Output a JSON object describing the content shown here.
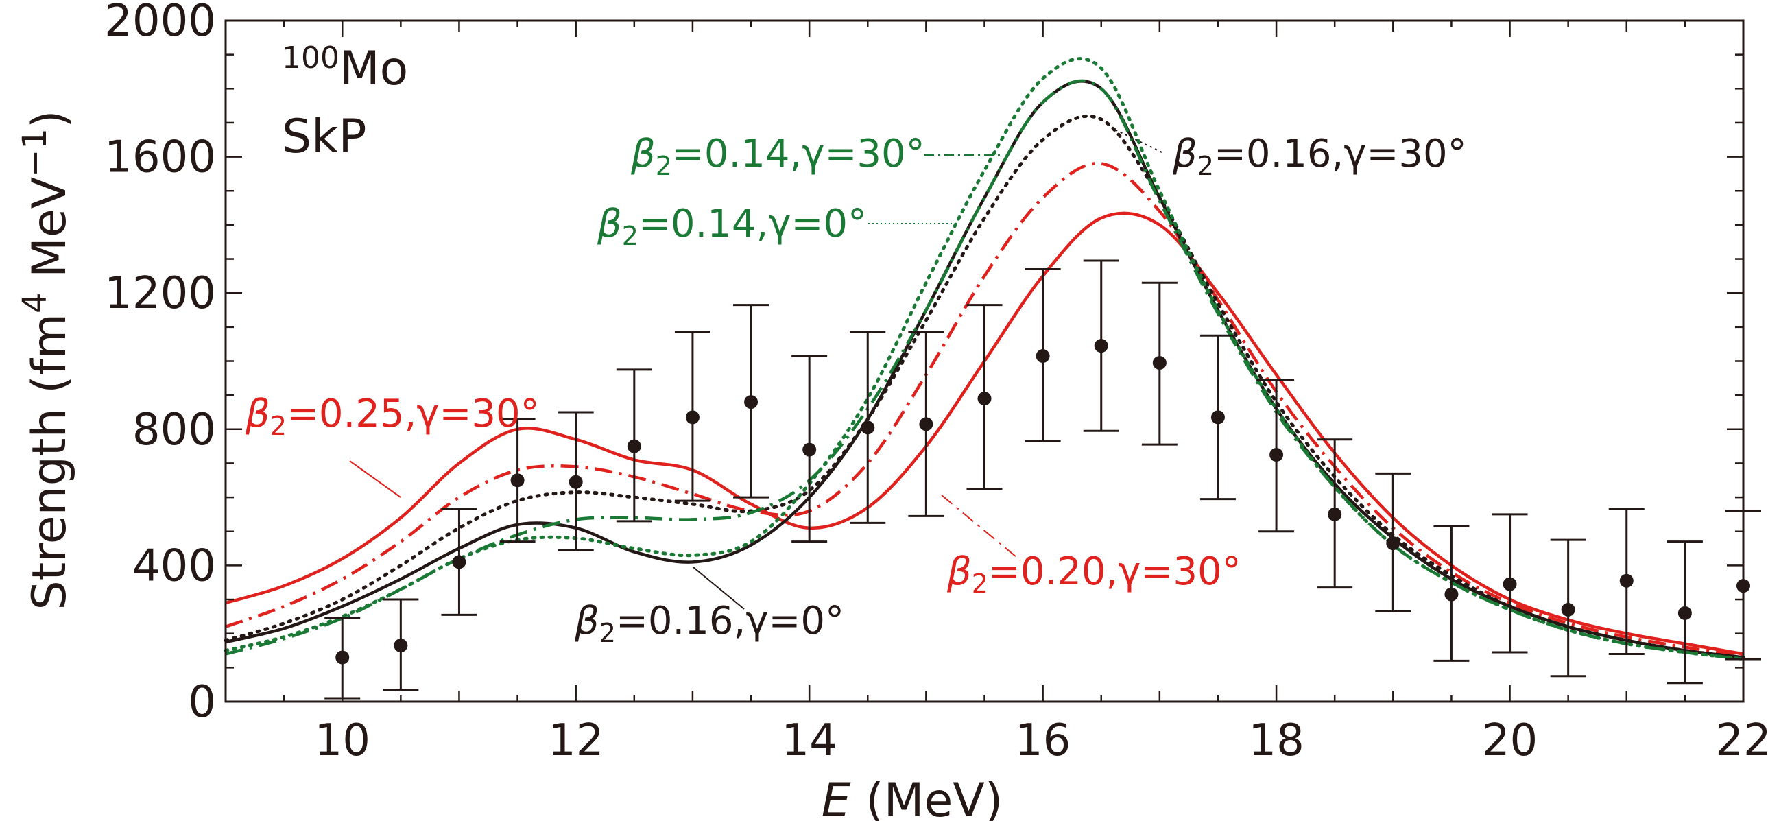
{
  "chart_data": {
    "type": "line",
    "xlabel_italic": "E",
    "xlabel_unit": "(MeV)",
    "ylabel": "Strength (fm",
    "ylabel_sup": "4",
    "ylabel_mid": " MeV",
    "ylabel_sup2": "−1",
    "ylabel_end": ")",
    "xlim": [
      9,
      22
    ],
    "ylim": [
      0,
      2000
    ],
    "xticks": [
      "10",
      "12",
      "14",
      "16",
      "18",
      "20",
      "22"
    ],
    "yticks": [
      "0",
      "400",
      "800",
      "1200",
      "1600",
      "2000"
    ],
    "annotations": {
      "nucleus_mass": "100",
      "nucleus_symbol": "Mo",
      "interaction": "SkP"
    },
    "x": [
      9,
      9.5,
      10,
      10.5,
      11,
      11.5,
      12,
      12.5,
      13,
      13.5,
      14,
      14.5,
      15,
      15.5,
      16,
      16.5,
      17,
      17.5,
      18,
      18.5,
      19,
      19.5,
      20,
      20.5,
      21,
      21.5,
      22
    ],
    "series": [
      {
        "label": {
          "beta": "β",
          "sub": "2",
          "rest": "=0.25,γ=30°"
        },
        "color": "#e0221e",
        "style": "solid",
        "values": [
          290,
          340,
          420,
          540,
          700,
          800,
          770,
          710,
          680,
          580,
          510,
          570,
          750,
          1000,
          1250,
          1420,
          1400,
          1200,
          960,
          730,
          540,
          400,
          300,
          240,
          200,
          170,
          140
        ]
      },
      {
        "label": {
          "beta": "β",
          "sub": "2",
          "rest": "=0.20,γ=30°"
        },
        "color": "#e0221e",
        "style": "dashdot",
        "values": [
          220,
          280,
          360,
          470,
          600,
          680,
          690,
          660,
          610,
          560,
          560,
          700,
          960,
          1250,
          1480,
          1580,
          1440,
          1180,
          910,
          690,
          510,
          380,
          290,
          230,
          190,
          160,
          135
        ]
      },
      {
        "label": {
          "beta": "β",
          "sub": "2",
          "rest": "=0.16,γ=30°"
        },
        "color": "#231815",
        "style": "dotted",
        "values": [
          180,
          230,
          300,
          400,
          510,
          590,
          615,
          600,
          580,
          560,
          620,
          830,
          1120,
          1420,
          1650,
          1710,
          1480,
          1170,
          880,
          660,
          490,
          370,
          280,
          220,
          180,
          150,
          130
        ]
      },
      {
        "label": {
          "beta": "β",
          "sub": "2",
          "rest": "=0.16,γ=0°"
        },
        "color": "#231815",
        "style": "solid",
        "values": [
          175,
          215,
          280,
          360,
          450,
          520,
          510,
          440,
          410,
          460,
          600,
          830,
          1150,
          1480,
          1760,
          1800,
          1480,
          1150,
          860,
          640,
          480,
          360,
          280,
          220,
          180,
          150,
          130
        ]
      },
      {
        "label": {
          "beta": "β",
          "sub": "2",
          "rest": "=0.14,γ=0°"
        },
        "color": "#1a7a35",
        "style": "dotted",
        "values": [
          150,
          190,
          250,
          330,
          420,
          475,
          480,
          450,
          430,
          470,
          640,
          890,
          1230,
          1560,
          1830,
          1860,
          1500,
          1150,
          860,
          630,
          460,
          350,
          270,
          210,
          170,
          145,
          125
        ]
      },
      {
        "label": {
          "beta": "β",
          "sub": "2",
          "rest": "=0.14,γ=30°"
        },
        "color": "#1a7a35",
        "style": "dashdot",
        "values": [
          140,
          185,
          245,
          330,
          420,
          490,
          535,
          540,
          535,
          555,
          650,
          860,
          1150,
          1480,
          1760,
          1800,
          1470,
          1140,
          850,
          630,
          460,
          350,
          270,
          210,
          170,
          145,
          125
        ]
      }
    ],
    "experiment": {
      "x": [
        10,
        10.5,
        11,
        11.5,
        12,
        12.5,
        13,
        13.5,
        14,
        14.5,
        15,
        15.5,
        16,
        16.5,
        17,
        17.5,
        18,
        18.5,
        19,
        19.5,
        20,
        20.5,
        21,
        21.5,
        22
      ],
      "y": [
        130,
        165,
        410,
        650,
        645,
        750,
        835,
        880,
        740,
        805,
        815,
        890,
        1015,
        1045,
        995,
        835,
        725,
        550,
        465,
        315,
        345,
        270,
        355,
        260,
        340
      ],
      "ylow": [
        10,
        35,
        255,
        470,
        445,
        530,
        590,
        600,
        470,
        525,
        545,
        625,
        765,
        795,
        755,
        595,
        500,
        335,
        265,
        120,
        145,
        75,
        140,
        55,
        125
      ],
      "yhigh": [
        245,
        300,
        565,
        830,
        850,
        975,
        1085,
        1165,
        1015,
        1085,
        1085,
        1165,
        1270,
        1295,
        1230,
        1075,
        945,
        770,
        670,
        515,
        550,
        475,
        565,
        470,
        560
      ]
    }
  }
}
